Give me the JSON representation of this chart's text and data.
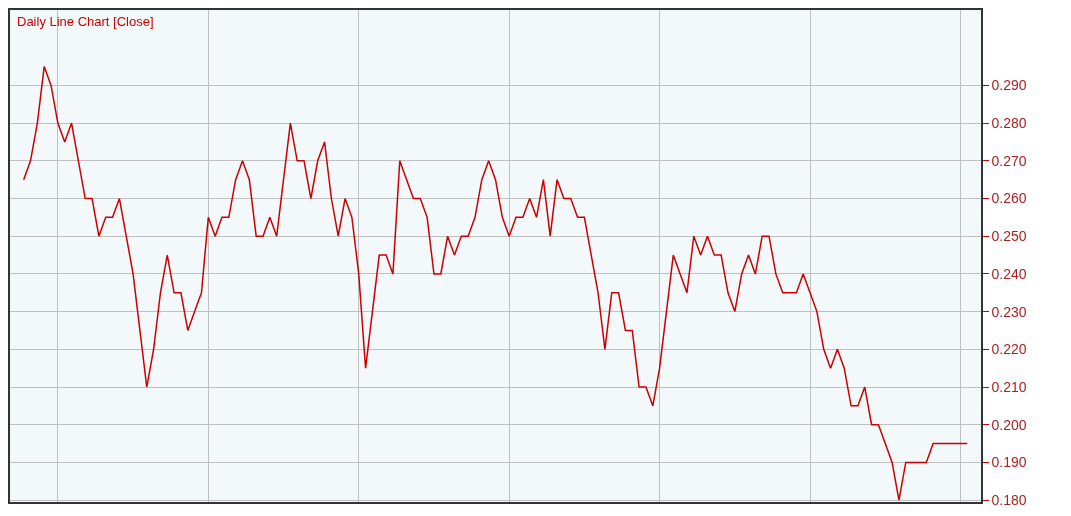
{
  "chart_data": {
    "type": "line",
    "title": "Daily Line Chart [Close]",
    "categories": [
      null,
      null,
      null,
      null,
      null,
      null,
      null,
      null,
      null,
      null,
      null,
      null,
      null,
      null,
      null,
      null,
      null,
      null,
      null,
      null,
      null,
      null,
      null,
      null,
      null,
      null,
      null,
      null,
      null,
      null,
      null,
      null,
      null,
      null,
      null,
      null,
      null,
      null,
      null,
      null,
      null,
      null,
      null,
      null,
      null,
      null,
      null,
      null,
      null,
      null,
      null,
      null,
      null,
      null,
      null,
      null,
      null,
      null,
      null,
      null,
      null,
      null,
      null,
      null,
      null,
      null,
      null,
      null,
      null,
      null,
      null,
      null,
      null,
      null,
      null,
      null,
      null,
      null,
      null,
      null,
      null,
      null,
      null,
      null,
      null,
      null,
      null,
      null,
      null,
      null,
      null,
      null,
      null,
      null,
      null,
      null,
      null,
      null,
      null,
      null,
      null,
      null,
      null,
      null,
      null,
      null,
      null,
      null,
      null,
      null,
      null,
      null,
      null,
      null,
      null,
      null,
      null,
      null,
      null,
      null,
      null,
      null,
      null,
      null,
      null,
      null,
      null,
      null,
      null,
      null,
      null,
      null,
      null,
      null,
      null,
      null,
      null,
      null,
      null
    ],
    "series": [
      {
        "color": "#cc0000",
        "values": [
          0.265,
          0.27,
          0.28,
          0.295,
          0.29,
          0.28,
          0.275,
          0.28,
          0.27,
          0.26,
          0.26,
          0.25,
          0.255,
          0.255,
          0.26,
          0.25,
          0.24,
          0.225,
          0.21,
          0.22,
          0.235,
          0.245,
          0.235,
          0.235,
          0.225,
          0.23,
          0.235,
          0.255,
          0.25,
          0.255,
          0.255,
          0.265,
          0.27,
          0.265,
          0.25,
          0.25,
          0.255,
          0.25,
          0.265,
          0.28,
          0.27,
          0.27,
          0.26,
          0.27,
          0.275,
          0.26,
          0.25,
          0.26,
          0.255,
          0.24,
          0.215,
          0.23,
          0.245,
          0.245,
          0.24,
          0.27,
          0.265,
          0.26,
          0.26,
          0.255,
          0.24,
          0.24,
          0.25,
          0.245,
          0.25,
          0.25,
          0.255,
          0.265,
          0.27,
          0.265,
          0.255,
          0.25,
          0.255,
          0.255,
          0.26,
          0.255,
          0.265,
          0.25,
          0.265,
          0.26,
          0.26,
          0.255,
          0.255,
          0.245,
          0.235,
          0.22,
          0.235,
          0.235,
          0.225,
          0.225,
          0.21,
          0.21,
          0.205,
          0.215,
          0.23,
          0.245,
          0.24,
          0.235,
          0.25,
          0.245,
          0.25,
          0.245,
          0.245,
          0.235,
          0.23,
          0.24,
          0.245,
          0.24,
          0.25,
          0.25,
          0.24,
          0.235,
          0.235,
          0.235,
          0.24,
          0.235,
          0.23,
          0.22,
          0.215,
          0.22,
          0.215,
          0.205,
          0.205,
          0.21,
          0.2,
          0.2,
          0.195,
          0.19,
          0.18,
          0.19,
          0.19,
          0.19,
          0.19,
          0.195,
          0.195,
          0.195,
          0.195,
          0.195,
          0.195
        ]
      }
    ],
    "ylim": [
      0.1795,
      0.31
    ],
    "yticks": [
      {
        "value": 0.18,
        "label": "0.180"
      },
      {
        "value": 0.19,
        "label": "0.190"
      },
      {
        "value": 0.2,
        "label": "0.200"
      },
      {
        "value": 0.21,
        "label": "0.210"
      },
      {
        "value": 0.22,
        "label": "0.220"
      },
      {
        "value": 0.23,
        "label": "0.230"
      },
      {
        "value": 0.24,
        "label": "0.240"
      },
      {
        "value": 0.25,
        "label": "0.250"
      },
      {
        "value": 0.26,
        "label": "0.260"
      },
      {
        "value": 0.27,
        "label": "0.270"
      },
      {
        "value": 0.28,
        "label": "0.280"
      },
      {
        "value": 0.29,
        "label": "0.290"
      }
    ],
    "grid": true,
    "legend": false,
    "tick_labels": "y"
  }
}
